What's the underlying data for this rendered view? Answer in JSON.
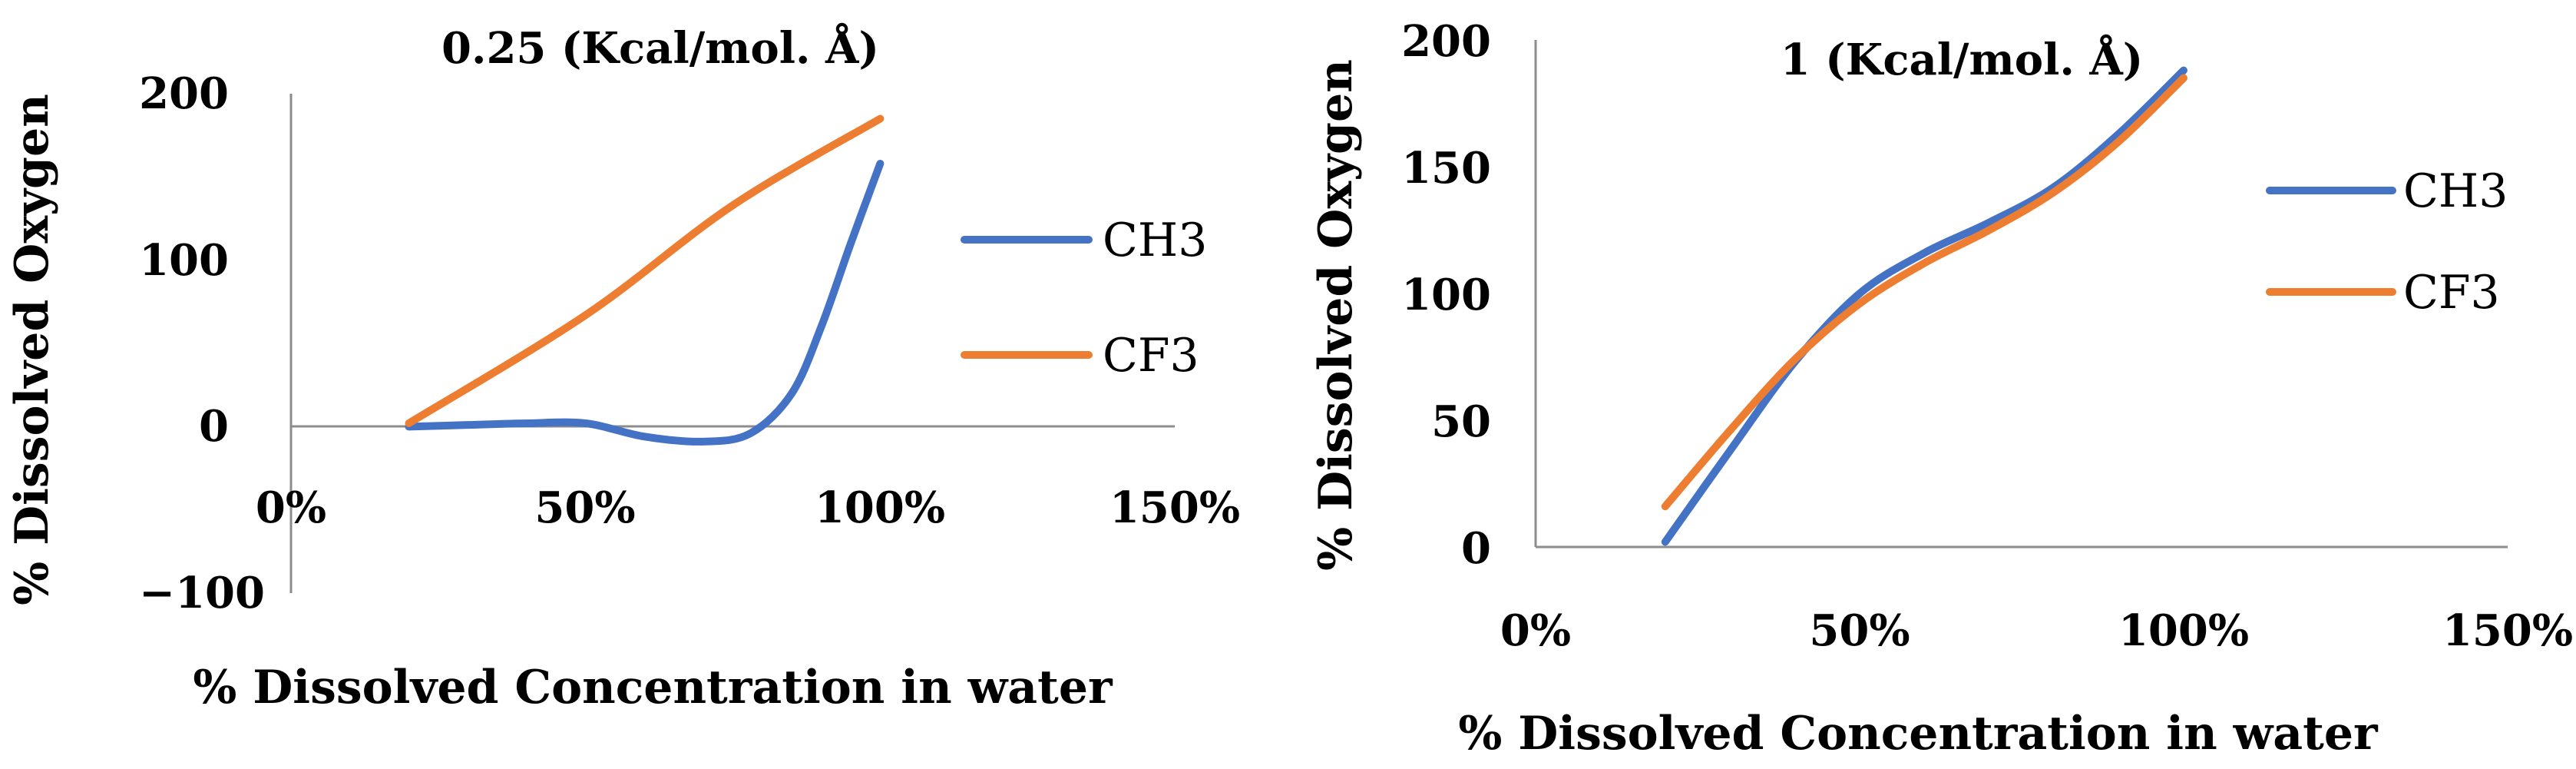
{
  "colors": {
    "CH3": "#4472C4",
    "CF3": "#ED7D31",
    "axis": "#8c8c8c"
  },
  "chart_data": [
    {
      "type": "line",
      "title": "0.25 (Kcal/mol. Å)",
      "xlabel": "% Dissolved Concentration in water",
      "ylabel": "% Dissolved Oxygen",
      "xlim": [
        0,
        150
      ],
      "ylim": [
        -100,
        200
      ],
      "x_ticks": [
        0,
        50,
        100,
        150
      ],
      "x_tick_labels": [
        "0%",
        "50%",
        "100%",
        "150%"
      ],
      "y_ticks": [
        -100,
        0,
        100,
        200
      ],
      "y_tick_labels": [
        "−100",
        "0",
        "100",
        "200"
      ],
      "legend": "right",
      "series": [
        {
          "name": "CH3",
          "x": [
            20,
            30,
            40,
            50,
            60,
            70,
            78,
            85,
            90,
            95,
            100
          ],
          "values": [
            0,
            1,
            2,
            2,
            -6,
            -9,
            -4,
            20,
            60,
            110,
            158
          ]
        },
        {
          "name": "CF3",
          "x": [
            20,
            50,
            75,
            100
          ],
          "values": [
            2,
            67,
            133,
            185
          ]
        }
      ]
    },
    {
      "type": "line",
      "title": "1 (Kcal/mol. Å)",
      "xlabel": "% Dissolved Concentration in water",
      "ylabel": "% Dissolved Oxygen",
      "xlim": [
        0,
        150
      ],
      "ylim": [
        0,
        200
      ],
      "x_ticks": [
        0,
        50,
        100,
        150
      ],
      "x_tick_labels": [
        "0%",
        "50%",
        "100%",
        "150%"
      ],
      "y_ticks": [
        0,
        50,
        100,
        150,
        200
      ],
      "y_tick_labels": [
        "0",
        "50",
        "100",
        "150",
        "200"
      ],
      "legend": "right",
      "series": [
        {
          "name": "CH3",
          "x": [
            20,
            30,
            40,
            50,
            60,
            70,
            80,
            90,
            100
          ],
          "values": [
            2,
            38,
            73,
            100,
            116,
            128,
            142,
            163,
            188
          ]
        },
        {
          "name": "CF3",
          "x": [
            20,
            30,
            40,
            50,
            60,
            70,
            80,
            90,
            100
          ],
          "values": [
            16,
            46,
            74,
            96,
            112,
            125,
            140,
            160,
            185
          ]
        }
      ]
    }
  ]
}
